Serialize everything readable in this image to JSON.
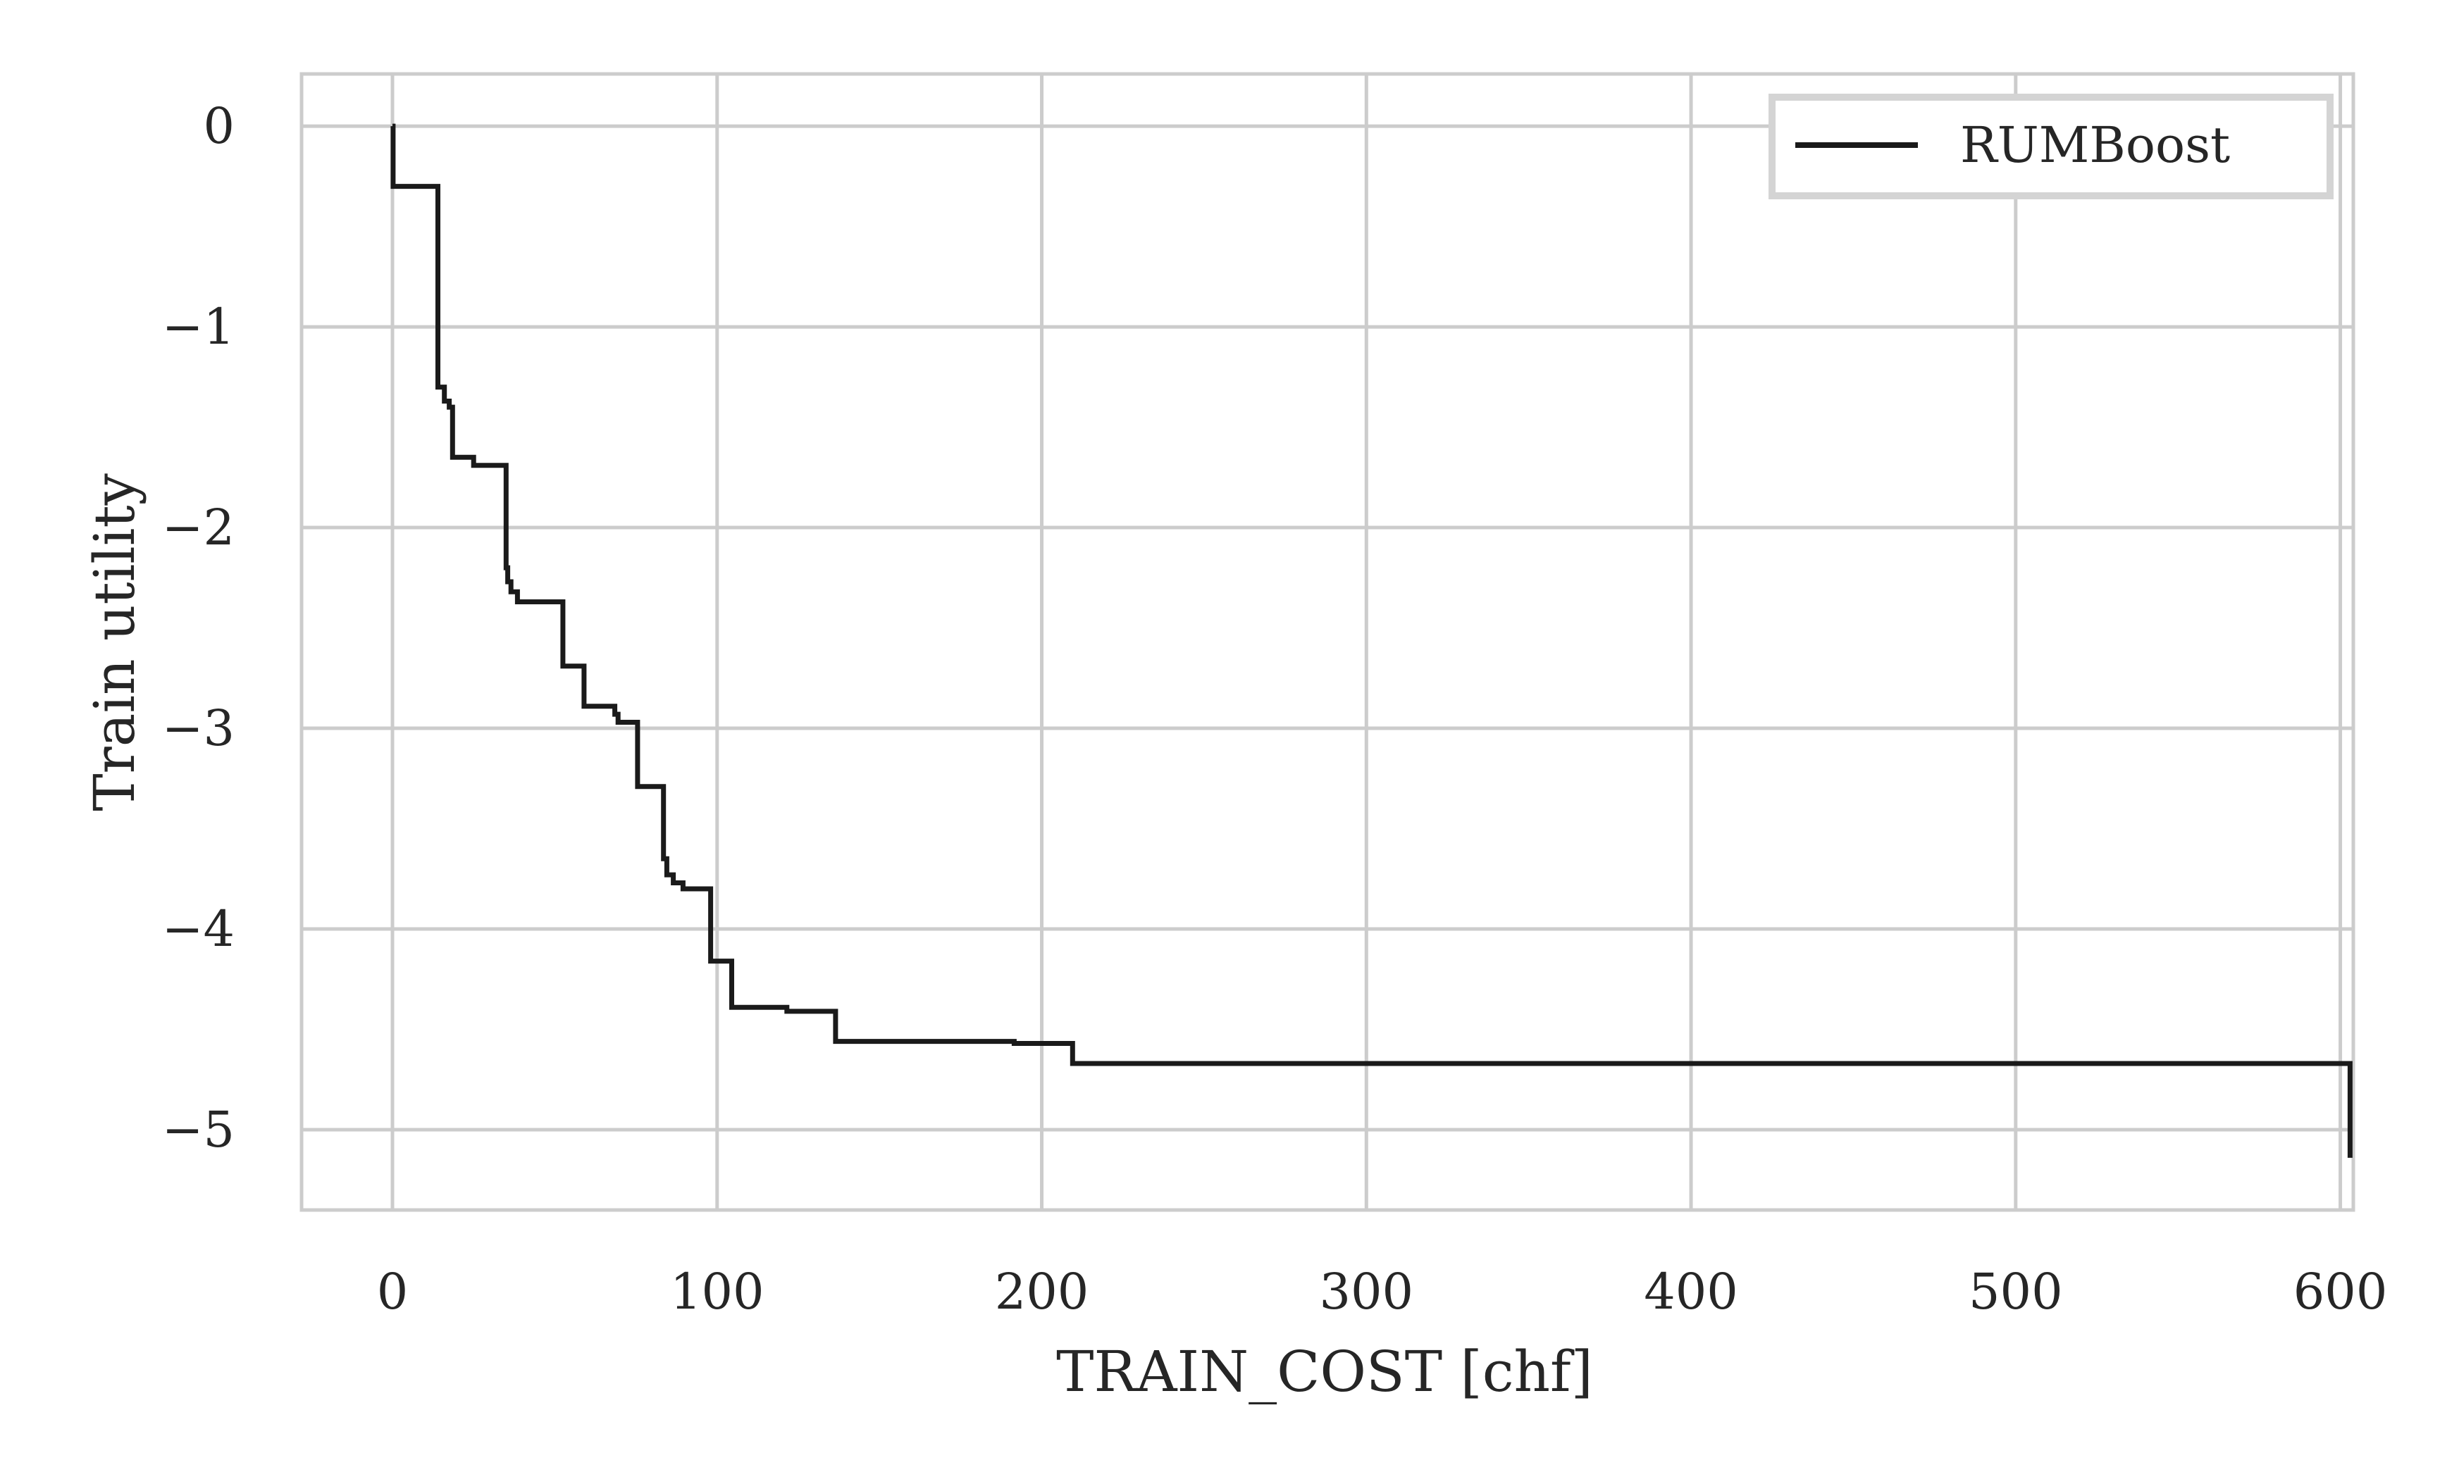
{
  "chart_data": {
    "type": "line",
    "step": true,
    "xlabel": "TRAIN_COST [chf]",
    "ylabel": "Train utility",
    "xlim": [
      -28,
      604
    ],
    "ylim": [
      -5.4,
      0.26
    ],
    "xticks": [
      0,
      100,
      200,
      300,
      400,
      500,
      600
    ],
    "yticks": [
      0,
      -1,
      -2,
      -3,
      -4,
      -5
    ],
    "xtick_labels": [
      "0",
      "100",
      "200",
      "300",
      "400",
      "500",
      "600"
    ],
    "ytick_labels": [
      "0",
      "−1",
      "−2",
      "−3",
      "−4",
      "−5"
    ],
    "grid": true,
    "legend": {
      "position": "top-right",
      "entries": [
        "RUMBoost"
      ]
    },
    "series": [
      {
        "name": "RUMBoost",
        "color": "#1a1a1a",
        "x": [
          0,
          0.2,
          13.5,
          14,
          16,
          17.5,
          18.5,
          25,
          34.5,
          35,
          35.5,
          36.5,
          38.5,
          52.5,
          59,
          67,
          68.5,
          69.5,
          75.5,
          83.5,
          84.5,
          86.5,
          89.5,
          98,
          104.5,
          121.5,
          136.5,
          191.5,
          209.5,
          603
        ],
        "y": [
          0,
          -0.3,
          -0.3,
          -1.3,
          -1.37,
          -1.4,
          -1.65,
          -1.69,
          -1.69,
          -2.2,
          -2.27,
          -2.32,
          -2.37,
          -2.69,
          -2.89,
          -2.89,
          -2.93,
          -2.97,
          -3.29,
          -3.65,
          -3.73,
          -3.77,
          -3.8,
          -4.16,
          -4.39,
          -4.41,
          -4.56,
          -4.57,
          -4.67,
          -5.14
        ]
      }
    ]
  }
}
